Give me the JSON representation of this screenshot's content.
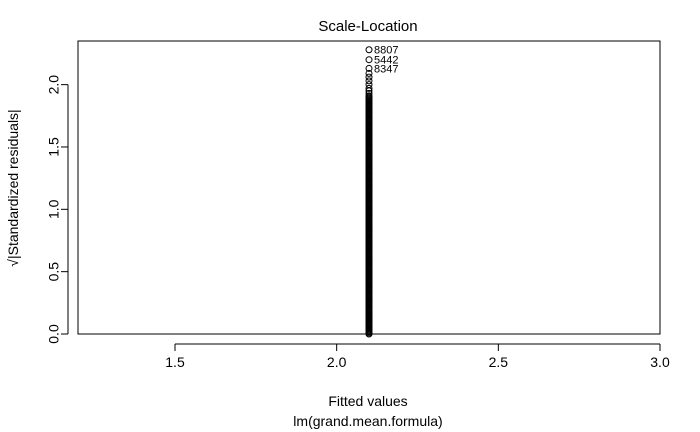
{
  "chart_data": {
    "type": "scatter",
    "title": "Scale-Location",
    "xlabel": "Fitted values",
    "sublabel": "lm(grand.mean.formula)",
    "ylabel": "√|Standardized residuals|",
    "xlim": [
      1.2,
      3.0
    ],
    "ylim": [
      0.0,
      2.35
    ],
    "xticks": [
      1.5,
      2.0,
      2.5,
      3.0
    ],
    "xtick_labels": [
      "1.5",
      "2.0",
      "2.5",
      "3.0"
    ],
    "yticks": [
      0.0,
      0.5,
      1.0,
      1.5,
      2.0
    ],
    "ytick_labels": [
      "0.0",
      "0.5",
      "1.0",
      "1.5",
      "2.0"
    ],
    "grid": false,
    "legend": "none",
    "fitted_value": 2.1,
    "dense_range": [
      0.0,
      1.9
    ],
    "sparse_points": [
      {
        "y": 1.91
      },
      {
        "y": 1.93
      },
      {
        "y": 1.95
      },
      {
        "y": 1.97
      },
      {
        "y": 2.0
      },
      {
        "y": 2.03
      },
      {
        "y": 2.06
      },
      {
        "y": 2.09
      }
    ],
    "labeled_points": [
      {
        "label": "8807",
        "x": 2.1,
        "y": 2.28
      },
      {
        "label": "5442",
        "x": 2.1,
        "y": 2.2
      },
      {
        "label": "8347",
        "x": 2.1,
        "y": 2.13
      }
    ],
    "color": "#000000"
  }
}
